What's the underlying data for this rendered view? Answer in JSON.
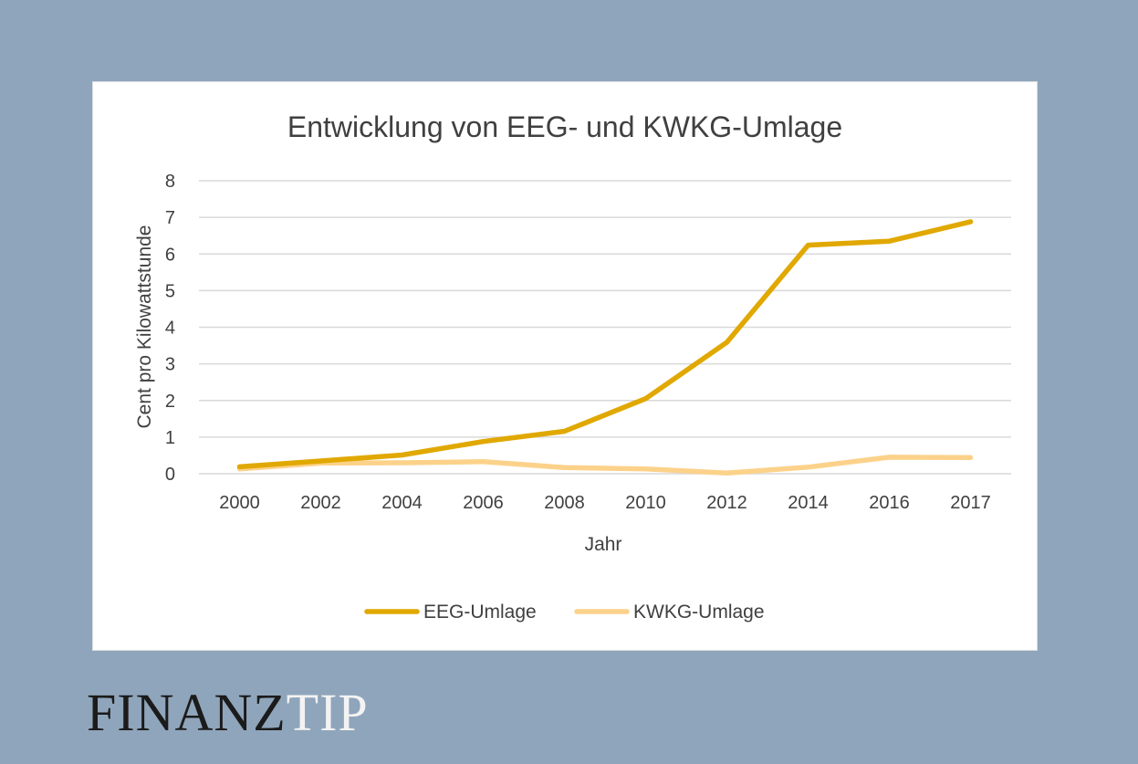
{
  "brand": {
    "part1": "FINANZ",
    "part2": "TIP"
  },
  "chart_data": {
    "type": "line",
    "title": "Entwicklung von EEG- und KWKG-Umlage",
    "xlabel": "Jahr",
    "ylabel": "Cent pro Kilowattstunde",
    "categories": [
      "2000",
      "2002",
      "2004",
      "2006",
      "2008",
      "2010",
      "2012",
      "2014",
      "2016",
      "2017"
    ],
    "ylim": [
      0,
      8
    ],
    "yticks": [
      "0",
      "1",
      "2",
      "3",
      "4",
      "5",
      "6",
      "7",
      "8"
    ],
    "grid": true,
    "legend_position": "bottom",
    "series": [
      {
        "name": "EEG-Umlage",
        "color": "#e0a800",
        "values": [
          0.19,
          0.35,
          0.51,
          0.88,
          1.16,
          2.05,
          3.59,
          6.24,
          6.35,
          6.88
        ]
      },
      {
        "name": "KWKG-Umlage",
        "color": "#fcd28a",
        "values": [
          0.13,
          0.29,
          0.3,
          0.33,
          0.17,
          0.13,
          0.02,
          0.18,
          0.45,
          0.44
        ]
      }
    ]
  }
}
